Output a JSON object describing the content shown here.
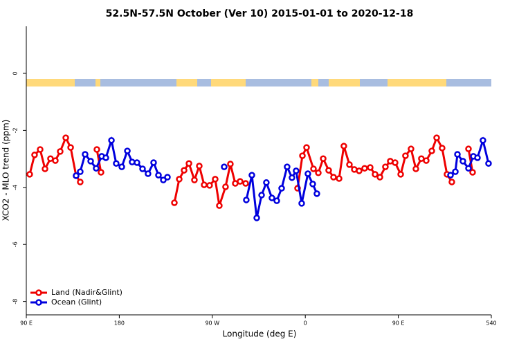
{
  "chart_data": {
    "type": "line",
    "title": "52.5N-57.5N October (Ver 10)   2015-01-01 to 2020-12-18",
    "x_label": "Longitude (deg E)",
    "y_label": "XCO2 - MLO trend (ppm)",
    "xlim": [
      90,
      540
    ],
    "xticks": [
      {
        "value": 90,
        "label": "90 E"
      },
      180,
      {
        "value": 270,
        "label": "90 W"
      },
      {
        "value": 360,
        "label": "0"
      },
      {
        "value": 450,
        "label": "90 E"
      },
      540
    ],
    "ylim": [
      -8.47,
      1.65
    ],
    "yticks": [
      0,
      -2,
      -4,
      -6,
      -8
    ],
    "legend": "bottom-left",
    "series": [
      {
        "name": "Land (Nadir&Glint)",
        "color": "#ee0000",
        "x": [
          93.3,
          98.0,
          103.4,
          108.1,
          113.4,
          118.1,
          122.8,
          128.2,
          132.9,
          138.2,
          142.2,
          null,
          158.3,
          162.3,
          null,
          233.3,
          238.0,
          242.7,
          247.4,
          252.7,
          257.4,
          262.1,
          267.4,
          272.8,
          276.8,
          282.8,
          287.5,
          292.2,
          296.9,
          302.3,
          null,
          352.5,
          357.2,
          361.2,
          367.9,
          372.6,
          377.3,
          382.6,
          387.3,
          392.7,
          397.3,
          402.7,
          407.4,
          412.1,
          417.4,
          422.8,
          427.5,
          432.2,
          437.5,
          442.2,
          446.9,
          452.3,
          456.9,
          462.3,
          467.0,
          472.3,
          477.0,
          482.4,
          487.1,
          492.4,
          497.1,
          501.8,
          null,
          517.9,
          521.9
        ],
        "values": [
          -3.54,
          -2.86,
          -2.67,
          -3.35,
          -2.99,
          -3.06,
          -2.74,
          -2.26,
          -2.6,
          -3.59,
          -3.81,
          null,
          -2.67,
          -3.47,
          null,
          -4.54,
          -3.71,
          -3.4,
          -3.16,
          -3.74,
          -3.25,
          -3.91,
          -3.93,
          -3.71,
          -4.64,
          -3.98,
          -3.18,
          -3.86,
          -3.79,
          -3.86,
          null,
          -4.03,
          -2.89,
          -2.6,
          -3.35,
          -3.49,
          -2.99,
          -3.4,
          -3.64,
          -3.69,
          -2.55,
          -3.2,
          -3.37,
          -3.42,
          -3.33,
          -3.3,
          -3.54,
          -3.64,
          -3.28,
          -3.08,
          -3.13,
          -3.54,
          -2.89,
          -2.65,
          -3.35,
          -2.99,
          -3.06,
          -2.72,
          -2.26,
          -2.62,
          -3.54,
          -3.81,
          null,
          -2.65,
          -3.47
        ]
      },
      {
        "name": "Ocean (Glint)",
        "color": "#0000dd",
        "x": [
          138.2,
          142.2,
          146.9,
          152.3,
          157.6,
          163.0,
          167.0,
          172.4,
          177.0,
          182.4,
          187.8,
          192.4,
          197.1,
          202.5,
          207.8,
          213.2,
          217.9,
          222.6,
          226.6,
          null,
          281.5,
          null,
          302.9,
          308.3,
          313.0,
          317.7,
          322.3,
          327.7,
          332.4,
          337.1,
          342.4,
          347.1,
          351.1,
          356.5,
          362.5,
          367.2,
          371.2,
          null,
          500.5,
          505.2,
          507.2,
          512.5,
          517.9,
          522.6,
          526.6,
          531.9,
          537.3
        ],
        "values": [
          -3.59,
          -3.45,
          -2.84,
          -3.08,
          -3.33,
          -2.91,
          -2.96,
          -2.35,
          -3.16,
          -3.28,
          -2.72,
          -3.11,
          -3.13,
          -3.35,
          -3.52,
          -3.13,
          -3.57,
          -3.74,
          -3.64,
          null,
          -3.28,
          null,
          -4.44,
          -3.57,
          -5.07,
          -4.27,
          -3.83,
          -4.37,
          -4.47,
          -4.03,
          -3.28,
          -3.66,
          -3.42,
          -4.56,
          -3.52,
          -3.88,
          -4.22,
          null,
          -3.57,
          -3.45,
          -2.84,
          -3.08,
          -3.33,
          -2.91,
          -2.96,
          -2.35,
          -3.16
        ]
      }
    ]
  }
}
